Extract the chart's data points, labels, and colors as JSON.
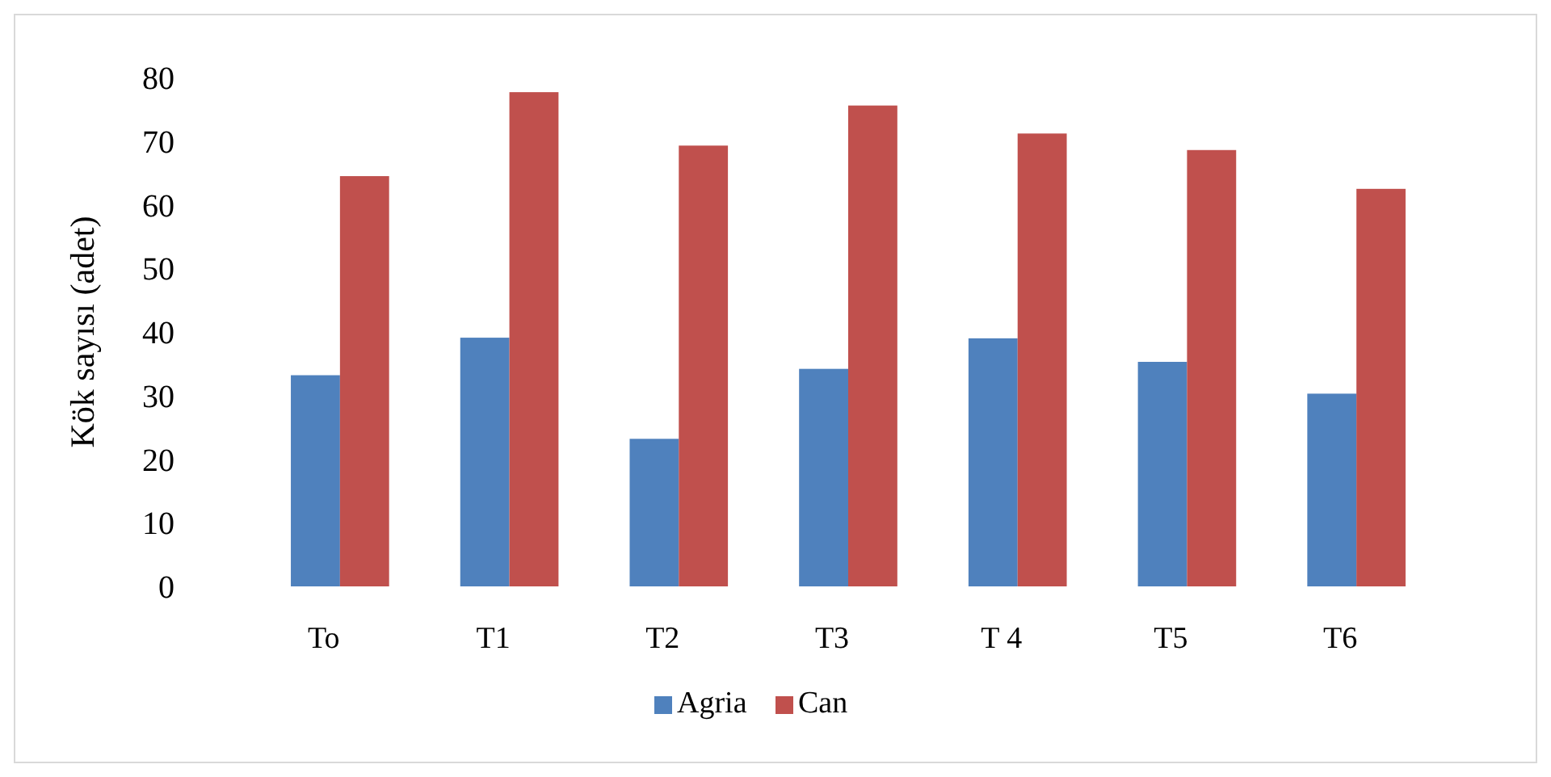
{
  "chart_data": {
    "type": "bar",
    "ylabel": "Kök sayısı (adet)",
    "categories": [
      "To",
      "T1",
      "T2",
      "T3",
      "T 4",
      "T5",
      "T6"
    ],
    "series": [
      {
        "name": "Agria",
        "color": "#4f81bd",
        "values": [
          33.2,
          39.1,
          23.2,
          34.2,
          39,
          35.3,
          30.3
        ]
      },
      {
        "name": "Can",
        "color": "#c0504d",
        "values": [
          64.5,
          77.7,
          69.3,
          75.6,
          71.2,
          68.6,
          62.5
        ]
      }
    ],
    "ylim": [
      0,
      80
    ],
    "yticks": [
      0,
      10,
      20,
      30,
      40,
      50,
      60,
      70,
      80
    ],
    "grid": false,
    "legend": "bottom"
  }
}
